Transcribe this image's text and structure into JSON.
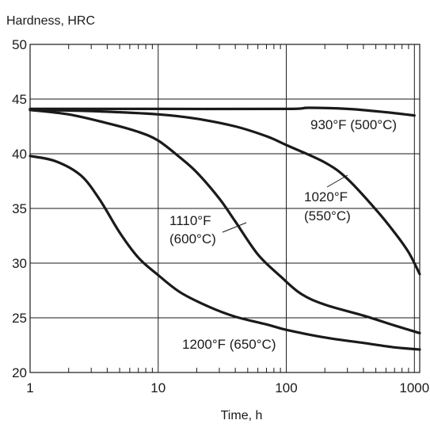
{
  "chart_data": {
    "type": "line",
    "xlabel": "Time, h",
    "ylabel": "Hardness, HRC",
    "x_scale": "log",
    "xlim": [
      1,
      1100
    ],
    "ylim": [
      20,
      50
    ],
    "x_ticks": [
      1,
      10,
      100,
      1000
    ],
    "x_tick_labels": [
      "1",
      "10",
      "100",
      "1000"
    ],
    "y_ticks": [
      20,
      25,
      30,
      35,
      40,
      45,
      50
    ],
    "y_tick_labels": [
      "20",
      "25",
      "30",
      "35",
      "40",
      "45",
      "50"
    ],
    "grid": {
      "x": true,
      "y": true
    },
    "legend": "none",
    "line_color": "#1a1a1a",
    "series": [
      {
        "name": "930°F (500°C)",
        "x": [
          1,
          10,
          100,
          150,
          300,
          600,
          1000
        ],
        "y": [
          44.1,
          44.1,
          44.1,
          44.2,
          44.1,
          43.8,
          43.5
        ]
      },
      {
        "name": "1020°F (550°C)",
        "x": [
          1,
          3,
          10,
          20,
          40,
          70,
          100,
          200,
          300,
          500,
          700,
          900,
          1100
        ],
        "y": [
          44.0,
          43.9,
          43.6,
          43.2,
          42.5,
          41.6,
          40.8,
          39.2,
          37.7,
          34.9,
          32.8,
          31.0,
          29.0
        ]
      },
      {
        "name": "1110°F (600°C)",
        "x": [
          1,
          2,
          4,
          7,
          10,
          15,
          20,
          30,
          40,
          60,
          90,
          130,
          200,
          400,
          700,
          1100
        ],
        "y": [
          44.0,
          43.6,
          42.8,
          42.0,
          41.2,
          39.6,
          38.3,
          35.9,
          33.8,
          30.8,
          28.8,
          27.2,
          26.2,
          25.2,
          24.3,
          23.6
        ]
      },
      {
        "name": "1200°F (650°C)",
        "x": [
          1,
          1.6,
          2.5,
          3.5,
          5,
          7,
          10,
          15,
          25,
          40,
          70,
          100,
          200,
          400,
          700,
          1100
        ],
        "y": [
          39.8,
          39.3,
          38.0,
          35.8,
          32.8,
          30.5,
          28.9,
          27.3,
          26.0,
          25.1,
          24.4,
          23.9,
          23.2,
          22.7,
          22.3,
          22.1
        ]
      }
    ],
    "annotations": [
      {
        "series": 0,
        "lines": [
          "930°F (500°C)"
        ]
      },
      {
        "series": 1,
        "lines": [
          "1020°F",
          "(550°C)"
        ]
      },
      {
        "series": 2,
        "lines": [
          "1110°F",
          "(600°C)"
        ]
      },
      {
        "series": 3,
        "lines": [
          "1200°F (650°C)"
        ]
      }
    ]
  }
}
